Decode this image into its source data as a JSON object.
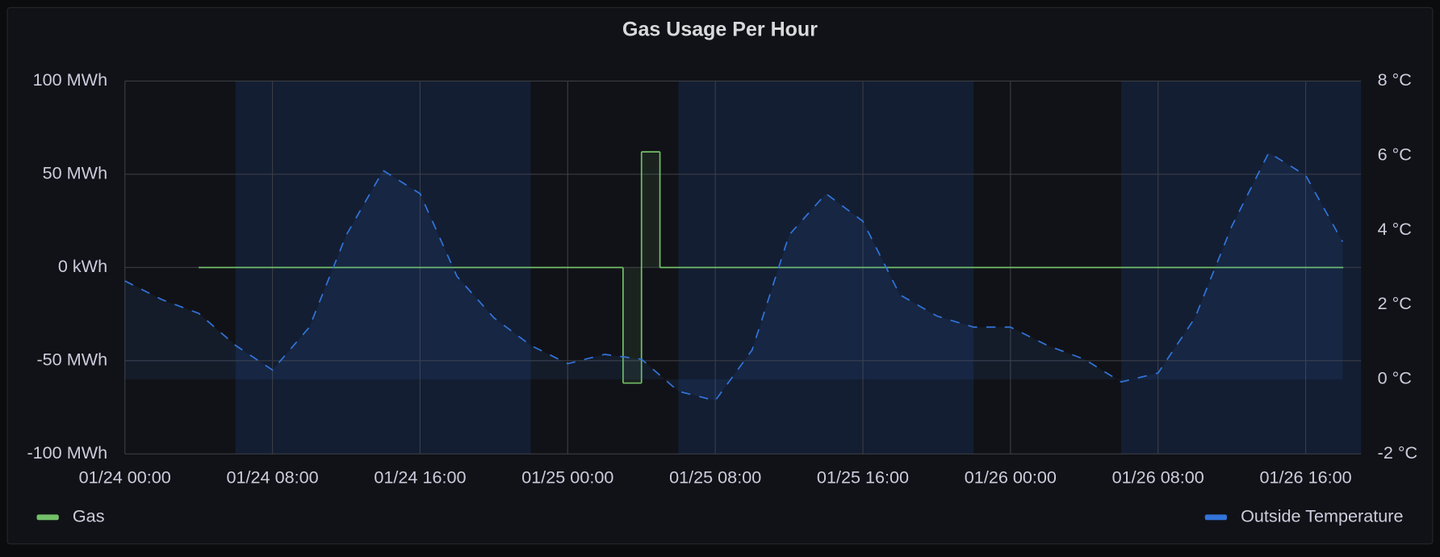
{
  "chart_data": {
    "type": "line",
    "title": "Gas Usage Per Hour",
    "xlim": [
      "01/24 00:00",
      "01/26 19:00"
    ],
    "xticks": [
      "01/24 00:00",
      "01/24 08:00",
      "01/24 16:00",
      "01/25 00:00",
      "01/25 08:00",
      "01/25 16:00",
      "01/26 00:00",
      "01/26 08:00",
      "01/26 16:00"
    ],
    "ylim": [
      -100,
      100
    ],
    "yticks": [
      {
        "value": -100,
        "label": "-100 MWh"
      },
      {
        "value": -50,
        "label": "-50 MWh"
      },
      {
        "value": 0,
        "label": "0 kWh"
      },
      {
        "value": 50,
        "label": "50 MWh"
      },
      {
        "value": 100,
        "label": "100 MWh"
      }
    ],
    "y2lim": [
      -2,
      8
    ],
    "y2ticks": [
      {
        "value": -2,
        "label": "-2 °C"
      },
      {
        "value": 0,
        "label": "0 °C"
      },
      {
        "value": 2,
        "label": "2 °C"
      },
      {
        "value": 4,
        "label": "4 °C"
      },
      {
        "value": 6,
        "label": "6 °C"
      },
      {
        "value": 8,
        "label": "8 °C"
      }
    ],
    "grid": true,
    "regions": [
      [
        "01/24 06:00",
        "01/24 22:00"
      ],
      [
        "01/25 06:00",
        "01/25 22:00"
      ],
      [
        "01/26 06:00",
        "01/26 19:00"
      ]
    ],
    "series": [
      {
        "name": "Gas",
        "color": "#73bf69",
        "step": true,
        "x": [
          "01/24 04:00",
          "01/25 03:00",
          "01/25 04:00",
          "01/25 05:00",
          "01/26 18:00"
        ],
        "values": [
          0,
          -62,
          62,
          0,
          0
        ]
      },
      {
        "name": "Outside Temperature",
        "color": "#3274d9",
        "axis": "y2",
        "dashed": true,
        "x": [
          "01/24 00:00",
          "01/24 02:00",
          "01/24 04:00",
          "01/24 06:00",
          "01/24 08:00",
          "01/24 10:00",
          "01/24 12:00",
          "01/24 14:00",
          "01/24 16:00",
          "01/24 18:00",
          "01/24 20:00",
          "01/24 22:00",
          "01/25 00:00",
          "01/25 02:00",
          "01/25 04:00",
          "01/25 06:00",
          "01/25 08:00",
          "01/25 10:00",
          "01/25 12:00",
          "01/25 14:00",
          "01/25 16:00",
          "01/25 18:00",
          "01/25 20:00",
          "01/25 22:00",
          "01/26 00:00",
          "01/26 02:00",
          "01/26 04:00",
          "01/26 06:00",
          "01/26 08:00",
          "01/26 10:00",
          "01/26 12:00",
          "01/26 14:00",
          "01/26 16:00",
          "01/26 18:00"
        ],
        "values": [
          2.64,
          2.14,
          1.77,
          0.91,
          0.25,
          1.4,
          3.87,
          5.6,
          4.98,
          2.76,
          1.65,
          0.91,
          0.42,
          0.67,
          0.54,
          -0.32,
          -0.57,
          0.79,
          3.87,
          4.98,
          4.24,
          2.27,
          1.7,
          1.4,
          1.4,
          0.91,
          0.54,
          -0.07,
          0.17,
          1.65,
          4.11,
          6.08,
          5.47,
          3.69
        ]
      }
    ]
  }
}
